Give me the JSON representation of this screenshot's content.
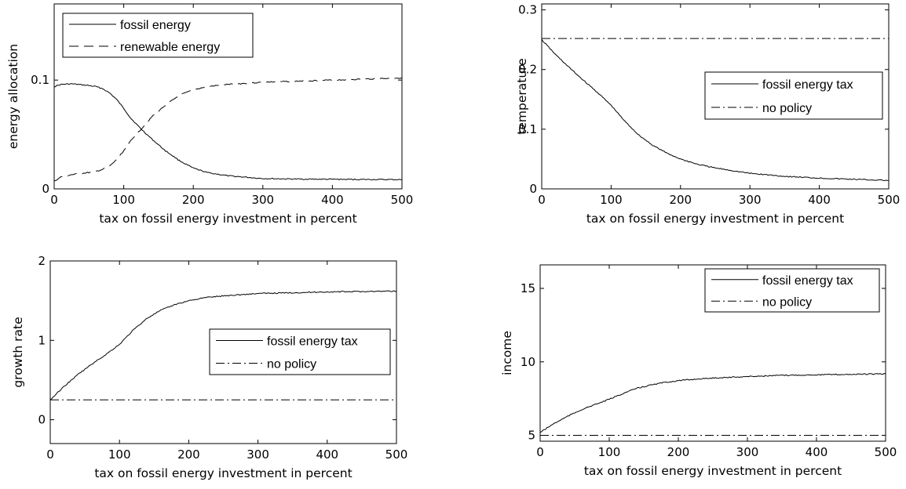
{
  "chart_data": [
    {
      "type": "line",
      "xlabel": "tax on fossil energy investment in percent",
      "ylabel": "energy allocation",
      "xlim": [
        0,
        500
      ],
      "ylim": [
        0,
        0.17
      ],
      "xticks": [
        "0",
        "100",
        "200",
        "300",
        "400",
        "500"
      ],
      "xtick_values": [
        0,
        100,
        200,
        300,
        400,
        500
      ],
      "yticks": [
        "0",
        "0.1"
      ],
      "ytick_values": [
        0,
        0.1
      ],
      "legend_position": "top-left",
      "series": [
        {
          "name": "fossil energy",
          "style": "solid",
          "x": [
            0,
            10,
            25,
            50,
            60,
            70,
            80,
            90,
            100,
            110,
            125,
            140,
            160,
            180,
            200,
            220,
            250,
            300,
            350,
            400,
            450,
            500
          ],
          "y": [
            0.094,
            0.096,
            0.0965,
            0.095,
            0.094,
            0.092,
            0.088,
            0.082,
            0.074,
            0.065,
            0.055,
            0.046,
            0.035,
            0.026,
            0.019,
            0.015,
            0.012,
            0.0095,
            0.009,
            0.0088,
            0.0086,
            0.0085
          ]
        },
        {
          "name": "renewable energy",
          "style": "dashed",
          "x": [
            0,
            10,
            25,
            50,
            60,
            70,
            80,
            90,
            100,
            110,
            125,
            140,
            160,
            180,
            200,
            220,
            250,
            300,
            350,
            400,
            450,
            500
          ],
          "y": [
            0.007,
            0.011,
            0.013,
            0.015,
            0.016,
            0.018,
            0.021,
            0.027,
            0.035,
            0.044,
            0.055,
            0.066,
            0.077,
            0.086,
            0.091,
            0.094,
            0.096,
            0.098,
            0.099,
            0.1,
            0.101,
            0.102
          ]
        }
      ]
    },
    {
      "type": "line",
      "xlabel": "tax on fossil energy investment in percent",
      "ylabel": "temperature",
      "xlim": [
        0,
        500
      ],
      "ylim": [
        0,
        0.31
      ],
      "xticks": [
        "0",
        "100",
        "200",
        "300",
        "400",
        "500"
      ],
      "xtick_values": [
        0,
        100,
        200,
        300,
        400,
        500
      ],
      "yticks": [
        "0",
        "0.1",
        "0.2",
        "0.3"
      ],
      "ytick_values": [
        0,
        0.1,
        0.2,
        0.3
      ],
      "legend_position": "center-right",
      "series": [
        {
          "name": "fossil energy tax",
          "style": "solid",
          "x": [
            0,
            20,
            40,
            60,
            80,
            100,
            120,
            140,
            160,
            180,
            200,
            225,
            250,
            300,
            350,
            400,
            450,
            500
          ],
          "y": [
            0.25,
            0.225,
            0.203,
            0.182,
            0.162,
            0.14,
            0.113,
            0.09,
            0.073,
            0.06,
            0.05,
            0.041,
            0.035,
            0.026,
            0.021,
            0.018,
            0.016,
            0.014
          ]
        },
        {
          "name": "no policy",
          "style": "dashdot",
          "x": [
            0,
            500
          ],
          "y": [
            0.252,
            0.252
          ]
        }
      ]
    },
    {
      "type": "line",
      "xlabel": "tax on fossil energy investment in percent",
      "ylabel": "growth rate",
      "xlim": [
        0,
        500
      ],
      "ylim": [
        -0.3,
        2
      ],
      "xticks": [
        "0",
        "100",
        "200",
        "300",
        "400",
        "500"
      ],
      "xtick_values": [
        0,
        100,
        200,
        300,
        400,
        500
      ],
      "yticks": [
        "0",
        "1",
        "2"
      ],
      "ytick_values": [
        0,
        1,
        2
      ],
      "legend_position": "center-right",
      "series": [
        {
          "name": "fossil energy tax",
          "style": "solid",
          "x": [
            0,
            20,
            40,
            60,
            80,
            100,
            120,
            140,
            160,
            180,
            200,
            225,
            250,
            300,
            350,
            400,
            450,
            500
          ],
          "y": [
            0.25,
            0.42,
            0.57,
            0.7,
            0.82,
            0.95,
            1.13,
            1.28,
            1.38,
            1.45,
            1.5,
            1.54,
            1.56,
            1.59,
            1.6,
            1.61,
            1.615,
            1.62
          ]
        },
        {
          "name": "no policy",
          "style": "dashdot",
          "x": [
            0,
            500
          ],
          "y": [
            0.25,
            0.25
          ]
        }
      ]
    },
    {
      "type": "line",
      "xlabel": "tax on fossil energy investment in percent",
      "ylabel": "income",
      "xlim": [
        0,
        500
      ],
      "ylim": [
        4.6,
        16.6
      ],
      "xticks": [
        "0",
        "100",
        "200",
        "300",
        "400",
        "500"
      ],
      "xtick_values": [
        0,
        100,
        200,
        300,
        400,
        500
      ],
      "yticks": [
        "5",
        "10",
        "15"
      ],
      "ytick_values": [
        5,
        10,
        15
      ],
      "legend_position": "top-right",
      "series": [
        {
          "name": "fossil energy tax",
          "style": "solid",
          "x": [
            0,
            20,
            40,
            60,
            80,
            100,
            120,
            140,
            160,
            180,
            200,
            225,
            250,
            300,
            350,
            400,
            450,
            500
          ],
          "y": [
            5.2,
            5.8,
            6.3,
            6.75,
            7.1,
            7.45,
            7.85,
            8.2,
            8.42,
            8.6,
            8.72,
            8.82,
            8.9,
            9.0,
            9.08,
            9.12,
            9.15,
            9.18
          ]
        },
        {
          "name": "no policy",
          "style": "dashdot",
          "x": [
            0,
            500
          ],
          "y": [
            5.0,
            5.0
          ]
        }
      ]
    }
  ]
}
